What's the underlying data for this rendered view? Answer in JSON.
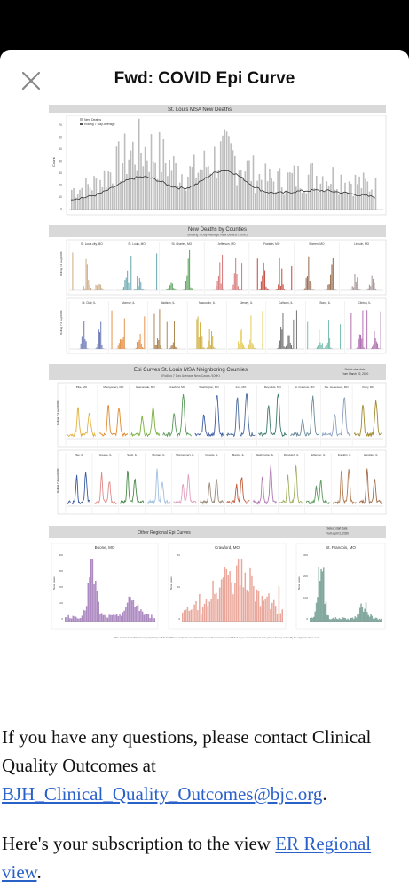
{
  "email": {
    "subject": "Fwd: COVID Epi Curve",
    "close_icon": "close-icon"
  },
  "report": {
    "section1_title": "St. Louis MSA New Deaths",
    "section1_legend": [
      "New Deaths",
      "Rolling 7 Day Average"
    ],
    "section1_ylabel": "Count",
    "section1_yticks": [
      "70",
      "60",
      "50",
      "40",
      "30",
      "20",
      "10",
      "0"
    ],
    "section2_title": "New Deaths by Counties",
    "section2_subtitle": "(Rolling 7 Day Average New Deaths /100K)",
    "section2_ylabel": "Rolling 7 d avg/100K",
    "row1_counties": [
      "St. Louis city, MO",
      "St. Louis, MO",
      "St. Charles, MO",
      "Jefferson, MO",
      "Franklin, MO",
      "Warren, MO",
      "Lincoln, MO"
    ],
    "row1_colors": [
      "#c8a47a",
      "#5aa0a8",
      "#4a9a4a",
      "#d26a6a",
      "#c0392b",
      "#8b5a3c",
      "#9a8a8a"
    ],
    "row2_counties": [
      "St. Clair, IL",
      "Monroe, IL",
      "Madison, IL",
      "Macoupin, IL",
      "Jersey, IL",
      "Calhoun, IL",
      "Bond, IL",
      "Clinton, IL"
    ],
    "row2_colors": [
      "#4a5aa8",
      "#e07a20",
      "#9a6a2a",
      "#c8a020",
      "#e0c030",
      "#555555",
      "#5ab0a0",
      "#a050a0"
    ],
    "section3_title": "Epi Curves St. Louis MSA Neighboring Counties",
    "section3_subtitle": "(Rolling 7 Day Average New Cases /100K)",
    "section3_note": "Select start date\nFrom March 22, 2020",
    "section3_ylabel": "Rolling 7 d avg/100K",
    "row3_counties": [
      "Pike, MO",
      "Montgomery, MO",
      "Gasconade, MO",
      "Crawford, MO",
      "Washington, MO",
      "Iron, MO",
      "Reynolds, MO",
      "St. Francois, MO",
      "Ste. Genevieve, MO",
      "Perry, MO"
    ],
    "row3_colors": [
      "#e0b040",
      "#e08a30",
      "#7ab040",
      "#5a9a5a",
      "#3a5aa0",
      "#4a6a9a",
      "#3a7a6a",
      "#6a8a9a",
      "#8aa0c0",
      "#a08a30"
    ],
    "row4_counties": [
      "Pike, IL",
      "Greene, IL",
      "Scott, IL",
      "Morgan, IL",
      "Montgomery, IL",
      "Fayette, IL",
      "Marion, IL",
      "Washington, IL",
      "Randolph, IL",
      "Jefferson, IL",
      "Franklin, IL",
      "Hamilton, IL"
    ],
    "row4_colors": [
      "#3a5aa0",
      "#e08a8a",
      "#4a8a4a",
      "#a0c0e0",
      "#e0a0c0",
      "#9a8a7a",
      "#c05a3a",
      "#b07ab0",
      "#a0b060",
      "#5a9a5a",
      "#b07a50",
      "#a06a4a"
    ],
    "section4_title": "Other Regional Epi Curves",
    "section4_note": "Select start date\nFrom April 2, 2020",
    "regional": [
      {
        "name": "Boone, MO",
        "color": "#6a2a90",
        "ylabel": "New cases",
        "yticks": [
          "400",
          "300",
          "200",
          "100",
          "0"
        ]
      },
      {
        "name": "Crawford, MO",
        "color": "#d8604a",
        "ylabel": "New cases",
        "yticks": [
          "40",
          "20",
          "0"
        ]
      },
      {
        "name": "St. Francois, MO",
        "color": "#2a6a5a",
        "ylabel": "New cases",
        "yticks": [
          "300",
          "200",
          "100",
          "0"
        ]
      }
    ],
    "footer": "This content is confidential and proprietary to BJC HealthCare recipients. Unauthorized use or dissemination is prohibited. If you received this in error, please destroy and notify the originator of the email."
  },
  "message": {
    "para1_text": "If you have any questions, please contact Clinical Quality Outcomes at ",
    "para1_link": "BJH_Clinical_Quality_Outcomes@bjc.org",
    "para1_end": ".",
    "para2_text": "Here's your subscription to the view ",
    "para2_link": "ER Regional view",
    "para2_end": "."
  }
}
